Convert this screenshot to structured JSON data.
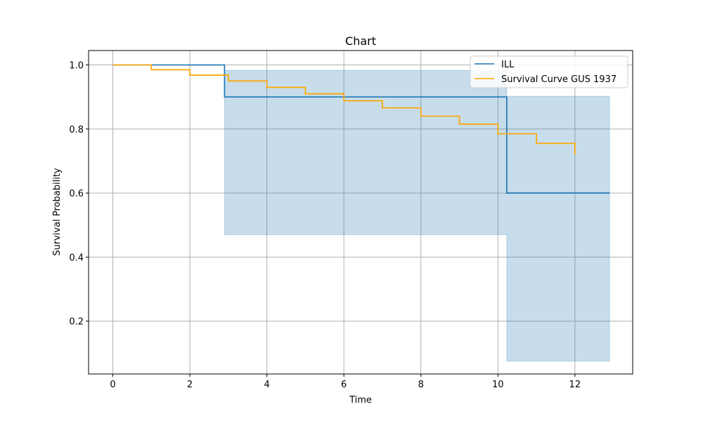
{
  "chart_data": {
    "type": "line",
    "title": "Chart",
    "xlabel": "Time",
    "ylabel": "Survival Probability",
    "xlim": [
      -0.63,
      13.5
    ],
    "ylim": [
      0.035,
      1.045
    ],
    "xticks": [
      0,
      2,
      4,
      6,
      8,
      10,
      12
    ],
    "yticks": [
      0.2,
      0.4,
      0.6,
      0.8,
      1.0
    ],
    "xtick_labels": [
      "0",
      "2",
      "4",
      "6",
      "8",
      "10",
      "12"
    ],
    "ytick_labels": [
      "0.2",
      "0.4",
      "0.6",
      "0.8",
      "1.0"
    ],
    "grid": true,
    "legend_position": "top-right",
    "series": [
      {
        "name": "ILL",
        "color": "#1f77b4",
        "step": "post",
        "x": [
          0,
          2.9,
          10.23,
          12.9
        ],
        "y": [
          1.0,
          0.9,
          0.6,
          0.6
        ],
        "ci_lower": [
          1.0,
          0.47,
          0.075,
          0.075
        ],
        "ci_upper": [
          1.0,
          0.983,
          0.902,
          0.902
        ]
      },
      {
        "name": "Survival Curve GUS 1937",
        "color": "#ffa500",
        "step": "post",
        "x": [
          0,
          1,
          2,
          3,
          4,
          5,
          6,
          7,
          8,
          9,
          10,
          11,
          12
        ],
        "y": [
          1.0,
          0.985,
          0.968,
          0.95,
          0.93,
          0.91,
          0.888,
          0.866,
          0.84,
          0.815,
          0.785,
          0.755,
          0.72
        ]
      }
    ]
  }
}
